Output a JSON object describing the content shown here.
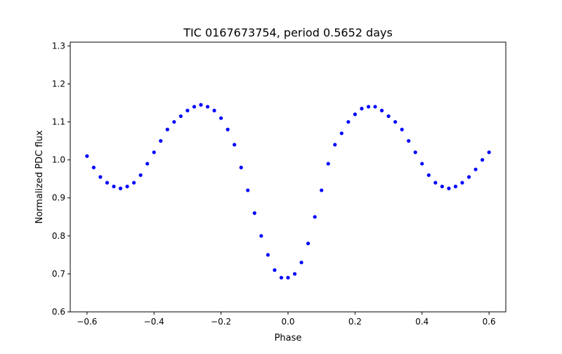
{
  "chart_data": {
    "type": "scatter",
    "title": "TIC 0167673754, period 0.5652 days",
    "xlabel": "Phase",
    "ylabel": "Normalized PDC flux",
    "xlim": [
      -0.65,
      0.65
    ],
    "ylim": [
      0.6,
      1.31
    ],
    "xticks": [
      -0.6,
      -0.4,
      -0.2,
      0.0,
      0.2,
      0.4,
      0.6
    ],
    "xtick_labels": [
      "−0.6",
      "−0.4",
      "−0.2",
      "0.0",
      "0.2",
      "0.4",
      "0.6"
    ],
    "yticks": [
      0.6,
      0.7,
      0.8,
      0.9,
      1.0,
      1.1,
      1.2,
      1.3
    ],
    "ytick_labels": [
      "0.6",
      "0.7",
      "0.8",
      "0.9",
      "1.0",
      "1.1",
      "1.2",
      "1.3"
    ],
    "grid": false,
    "legend": "none",
    "marker_color": "#0000ff",
    "series": [
      {
        "x": [
          -0.6,
          -0.58,
          -0.56,
          -0.54,
          -0.52,
          -0.5,
          -0.48,
          -0.46,
          -0.44,
          -0.42,
          -0.4,
          -0.38,
          -0.36,
          -0.34,
          -0.32,
          -0.3,
          -0.28,
          -0.26,
          -0.24,
          -0.22,
          -0.2,
          -0.18,
          -0.16,
          -0.14,
          -0.12,
          -0.1,
          -0.08,
          -0.06,
          -0.04,
          -0.02,
          0.0,
          0.02,
          0.04,
          0.06,
          0.08,
          0.1,
          0.12,
          0.14,
          0.16,
          0.18,
          0.2,
          0.22,
          0.24,
          0.26,
          0.28,
          0.3,
          0.32,
          0.34,
          0.36,
          0.38,
          0.4,
          0.42,
          0.44,
          0.46,
          0.48,
          0.5,
          0.52,
          0.54,
          0.56,
          0.58,
          0.6
        ],
        "y": [
          1.01,
          0.98,
          0.955,
          0.94,
          0.93,
          0.925,
          0.93,
          0.94,
          0.96,
          0.99,
          1.02,
          1.05,
          1.08,
          1.1,
          1.115,
          1.13,
          1.14,
          1.145,
          1.14,
          1.13,
          1.11,
          1.08,
          1.04,
          0.98,
          0.92,
          0.86,
          0.8,
          0.75,
          0.71,
          0.69,
          0.69,
          0.7,
          0.73,
          0.78,
          0.85,
          0.92,
          0.99,
          1.04,
          1.07,
          1.1,
          1.12,
          1.135,
          1.14,
          1.14,
          1.13,
          1.115,
          1.1,
          1.08,
          1.05,
          1.02,
          0.99,
          0.96,
          0.94,
          0.93,
          0.925,
          0.93,
          0.94,
          0.955,
          0.975,
          1.0,
          1.02
        ]
      }
    ]
  }
}
